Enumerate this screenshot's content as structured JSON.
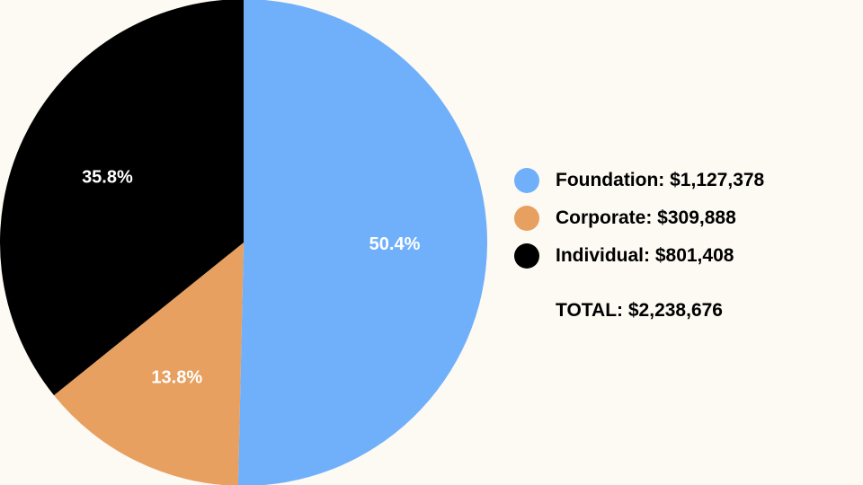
{
  "chart_data": {
    "type": "pie",
    "slices": [
      {
        "name": "Foundation",
        "value": 1127378,
        "percent_label": "50.4%",
        "color": "#70b0fb",
        "legend_label": "Foundation: $1,127,378"
      },
      {
        "name": "Corporate",
        "value": 309888,
        "percent_label": "13.8%",
        "color": "#e7a05f",
        "legend_label": "Corporate: $309,888"
      },
      {
        "name": "Individual",
        "value": 801408,
        "percent_label": "35.8%",
        "color": "#000000",
        "legend_label": "Individual: $801,408"
      }
    ],
    "total_label": "TOTAL: $2,238,676",
    "legend_position": "right",
    "start": "12 o'clock",
    "direction": "clockwise"
  }
}
